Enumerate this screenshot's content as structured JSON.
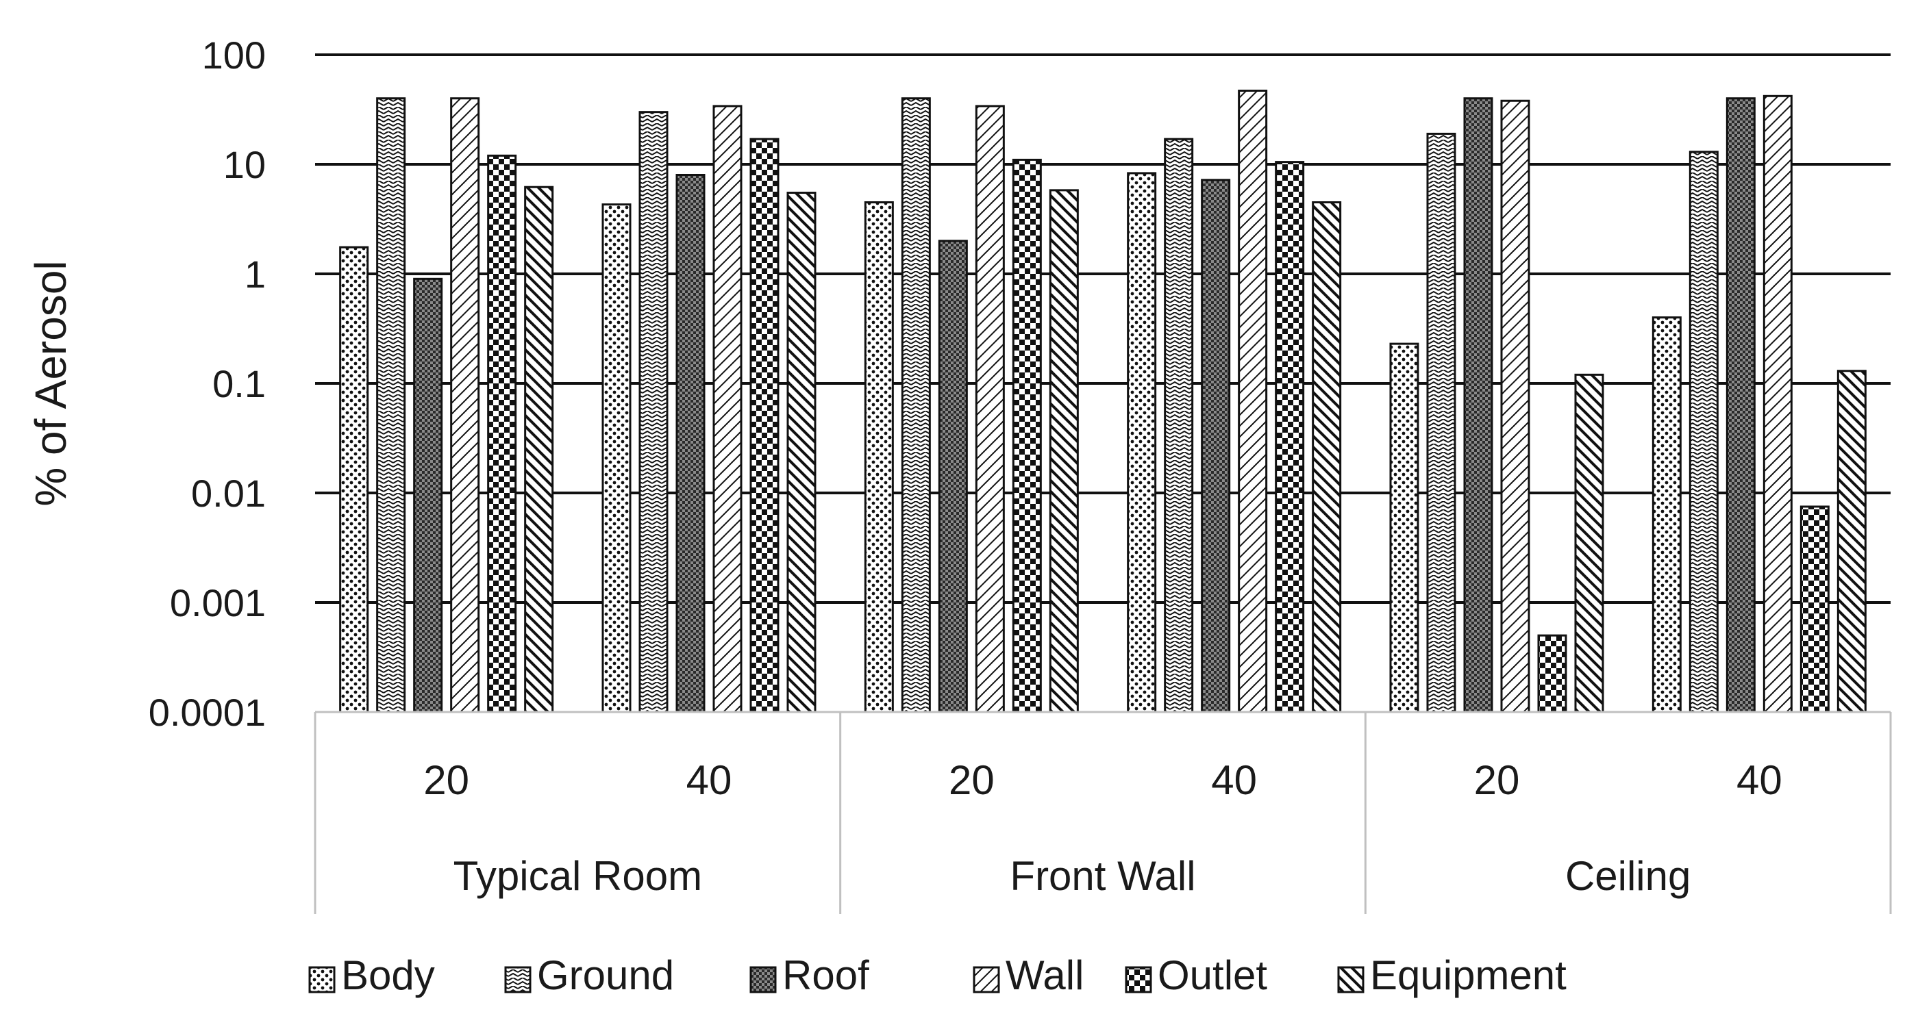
{
  "chart_data": {
    "type": "bar",
    "y_scale": "log",
    "ylabel": "% of Aerosol",
    "ylim": [
      0.0001,
      100
    ],
    "y_ticks": [
      "100",
      "10",
      "1",
      "0.1",
      "0.01",
      "0.001",
      "0.0001"
    ],
    "y_tick_values": [
      100,
      10,
      1,
      0.1,
      0.01,
      0.001,
      0.0001
    ],
    "grid": true,
    "groups": [
      {
        "label": "Typical Room",
        "subcategories": [
          "20",
          "40"
        ]
      },
      {
        "label": "Front Wall",
        "subcategories": [
          "20",
          "40"
        ]
      },
      {
        "label": "Ceiling",
        "subcategories": [
          "20",
          "40"
        ]
      }
    ],
    "categories": [
      "Typical Room 20",
      "Typical Room 40",
      "Front Wall 20",
      "Front Wall 40",
      "Ceiling 20",
      "Ceiling 40"
    ],
    "series": [
      {
        "name": "Body",
        "pattern": "dots",
        "values": [
          1.75,
          4.3,
          4.5,
          8.3,
          0.23,
          0.4
        ]
      },
      {
        "name": "Ground",
        "pattern": "zigzag",
        "values": [
          40,
          30,
          40,
          17,
          19,
          13
        ]
      },
      {
        "name": "Roof",
        "pattern": "dense-check",
        "values": [
          0.9,
          8.0,
          2.0,
          7.2,
          40,
          40
        ]
      },
      {
        "name": "Wall",
        "pattern": "diag-up",
        "values": [
          40,
          34,
          34,
          47,
          38,
          42
        ]
      },
      {
        "name": "Outlet",
        "pattern": "checker",
        "values": [
          12,
          17,
          11,
          10.5,
          0.0005,
          0.0075
        ]
      },
      {
        "name": "Equipment",
        "pattern": "diag-down",
        "values": [
          6.2,
          5.5,
          5.8,
          4.5,
          0.12,
          0.13
        ]
      }
    ],
    "legend_position": "bottom"
  }
}
